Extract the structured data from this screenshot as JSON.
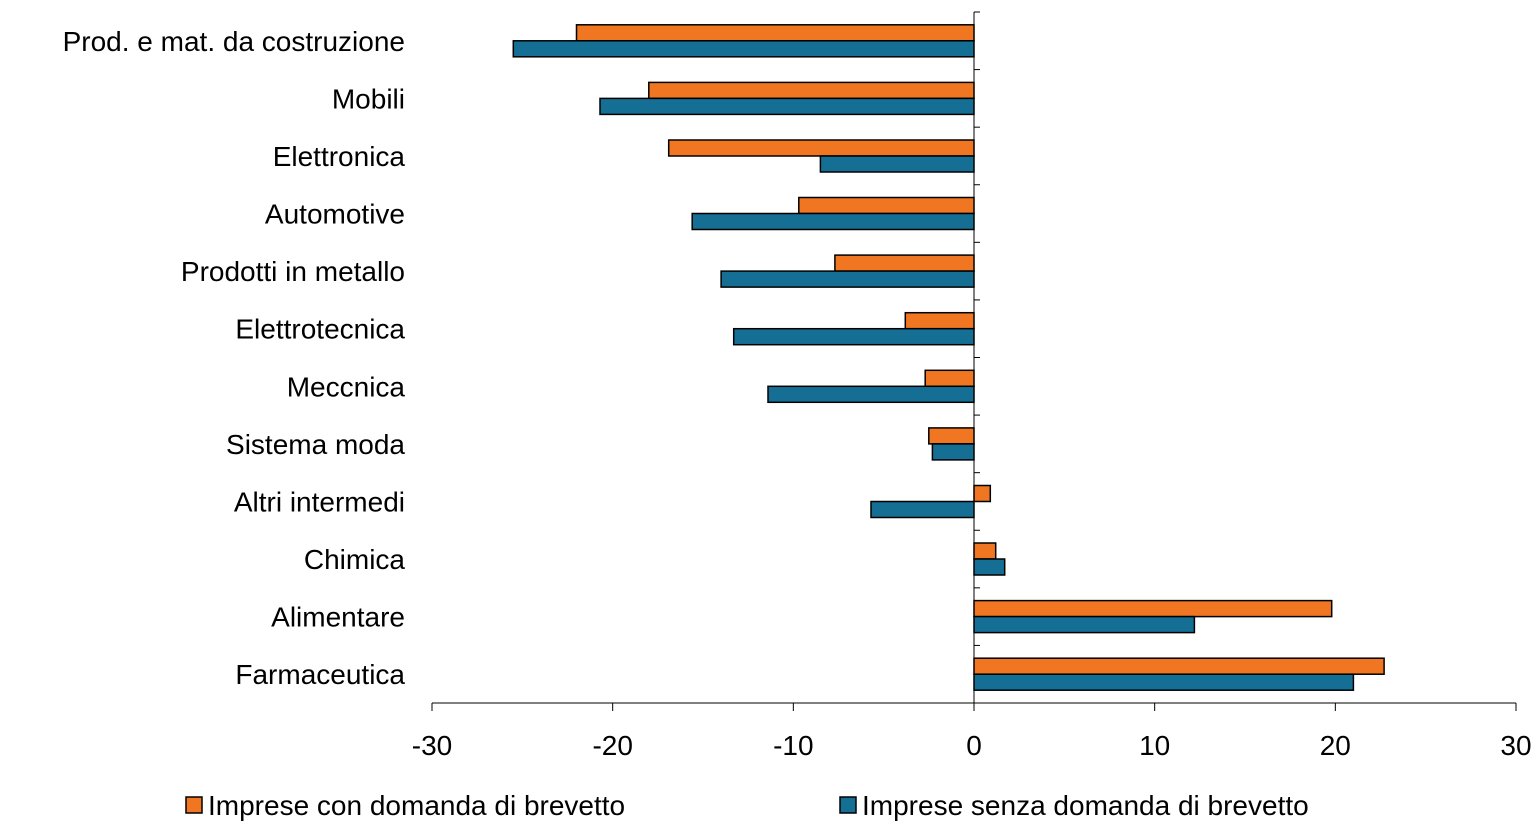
{
  "chart_data": {
    "type": "bar",
    "orientation": "horizontal",
    "categories": [
      "Prod. e mat. da costruzione",
      "Mobili",
      "Elettronica",
      "Automotive",
      "Prodotti in metallo",
      "Elettrotecnica",
      "Meccnica",
      "Sistema moda",
      "Altri intermedi",
      "Chimica",
      "Alimentare",
      "Farmaceutica"
    ],
    "series": [
      {
        "name": "Imprese con domanda di brevetto",
        "color": "#f07622",
        "values": [
          -22.0,
          -18.0,
          -16.9,
          -9.7,
          -7.7,
          -3.8,
          -2.7,
          -2.5,
          0.9,
          1.2,
          19.8,
          22.7
        ]
      },
      {
        "name": "Imprese senza domanda di brevetto",
        "color": "#156f95",
        "values": [
          -25.5,
          -20.7,
          -8.5,
          -15.6,
          -14.0,
          -13.3,
          -11.4,
          -2.3,
          -5.7,
          1.7,
          12.2,
          21.0
        ]
      }
    ],
    "xlim": [
      -30,
      30
    ],
    "xticks": [
      "-30",
      "-20",
      "-10",
      "0",
      "10",
      "20",
      "30"
    ],
    "xtick_values": [
      -30,
      -20,
      -10,
      0,
      10,
      20,
      30
    ],
    "title": "",
    "xlabel": "",
    "ylabel": "",
    "grid": false,
    "legend": "bottom"
  }
}
